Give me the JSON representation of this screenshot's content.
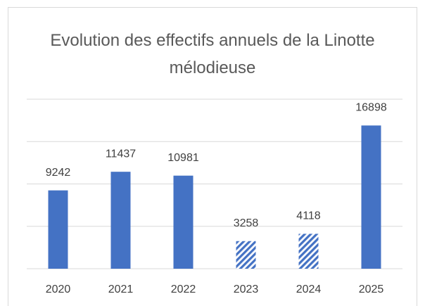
{
  "chart_data": {
    "type": "bar",
    "title": "Evolution des effectifs annuels de la Linotte mélodieuse",
    "categories": [
      "2020",
      "2021",
      "2022",
      "2023",
      "2024",
      "2025"
    ],
    "values": [
      9242,
      11437,
      10981,
      3258,
      4118,
      16898
    ],
    "color": "#4472c4",
    "hatched": [
      false,
      false,
      false,
      true,
      true,
      false
    ],
    "ylim": [
      0,
      20000
    ],
    "yticks": [
      0,
      5000,
      10000,
      15000,
      20000
    ],
    "grid": true
  }
}
